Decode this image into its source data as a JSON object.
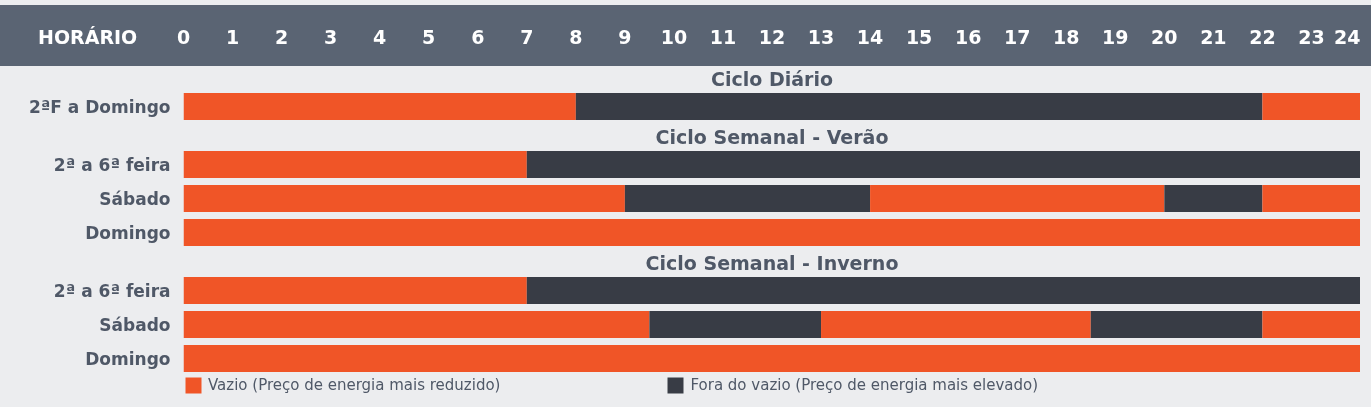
{
  "chart_data": [
    {
      "type": "bar",
      "orientation": "horizontal",
      "stacked": true,
      "title": "Ciclo Diário",
      "xlabel": "HORÁRIO",
      "categories": [
        "2ªF a Domingo"
      ],
      "xlim": [
        0,
        24
      ],
      "xticks": [
        0,
        1,
        2,
        3,
        4,
        5,
        6,
        7,
        8,
        9,
        10,
        11,
        12,
        13,
        14,
        15,
        16,
        17,
        18,
        19,
        20,
        21,
        22,
        23,
        24
      ],
      "series": [
        {
          "color": "#f05527",
          "values": [
            8
          ]
        },
        {
          "color": "#383c45",
          "values": [
            14
          ]
        },
        {
          "color": "#f05527",
          "values": [
            2
          ]
        }
      ]
    },
    {
      "type": "bar",
      "orientation": "horizontal",
      "stacked": true,
      "title": "Ciclo Semanal - Verão",
      "categories": [
        "2ª a 6ª feira",
        "Sábado",
        "Domingo"
      ],
      "xlim": [
        0,
        24
      ],
      "xticks": [
        0,
        1,
        2,
        3,
        4,
        5,
        6,
        7,
        8,
        9,
        10,
        11,
        12,
        13,
        14,
        15,
        16,
        17,
        18,
        19,
        20,
        21,
        22,
        23,
        24
      ],
      "tick_labels": "y",
      "series": [
        {
          "color": "#f05527",
          "values": [
            7,
            9,
            24
          ]
        },
        {
          "color": "#383c45",
          "values": [
            17,
            5,
            null
          ]
        },
        {
          "color": "#f05527",
          "values": [
            null,
            6,
            null
          ]
        },
        {
          "color": "#383c45",
          "values": [
            null,
            2,
            null
          ]
        },
        {
          "color": "#f05527",
          "values": [
            null,
            2,
            null
          ]
        }
      ]
    },
    {
      "type": "bar",
      "orientation": "horizontal",
      "stacked": true,
      "title": "Ciclo Semanal - Inverno",
      "categories": [
        "2ª a 6ª feira",
        "Sábado",
        "Domingo"
      ],
      "xlim": [
        0,
        24
      ],
      "xticks": [
        0,
        1,
        2,
        3,
        4,
        5,
        6,
        7,
        8,
        9,
        10,
        11,
        12,
        13,
        14,
        15,
        16,
        17,
        18,
        19,
        20,
        21,
        22,
        23,
        24
      ],
      "tick_labels": "y",
      "legend": "bottom",
      "series": [
        {
          "name": "Vazio (Preço de energia mais reduzido)",
          "color": "#f05527",
          "values": [
            7,
            9.5,
            24
          ]
        },
        {
          "name": "Fora do vazio (Preço de energia mais elevado)",
          "color": "#383c45",
          "values": [
            17,
            3.5,
            null
          ]
        },
        {
          "color": "#f05527",
          "values": [
            null,
            5.5,
            null
          ]
        },
        {
          "color": "#383c45",
          "values": [
            null,
            3.5,
            null
          ]
        },
        {
          "color": "#f05527",
          "values": [
            null,
            2,
            null
          ]
        }
      ]
    }
  ]
}
